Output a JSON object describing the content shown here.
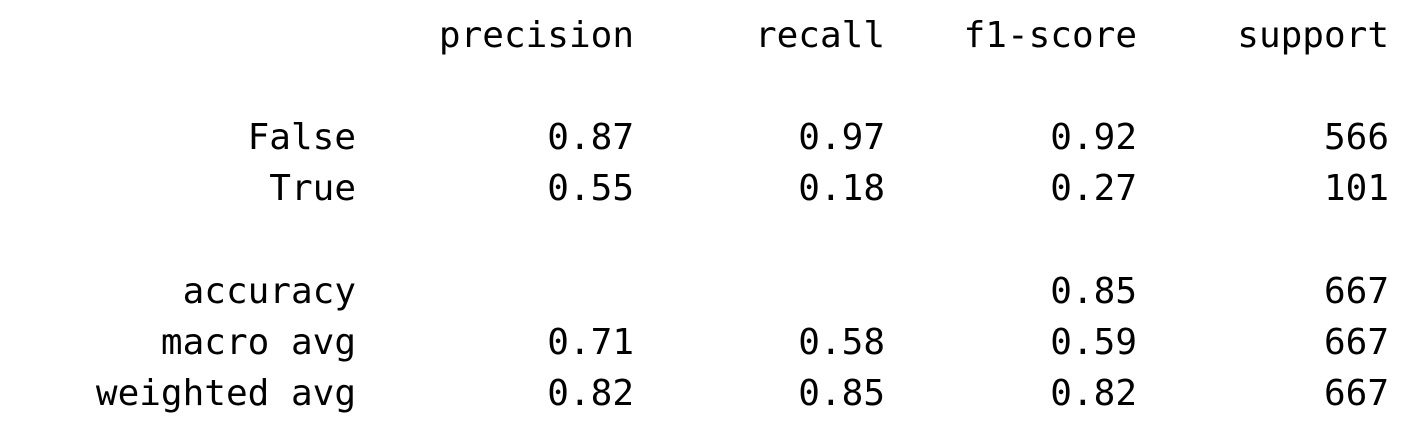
{
  "headers": [
    "precision",
    "recall",
    "f1-score",
    "support"
  ],
  "class_rows": [
    {
      "label": "False",
      "precision": "0.87",
      "recall": "0.97",
      "f1": "0.92",
      "support": "566"
    },
    {
      "label": "True",
      "precision": "0.55",
      "recall": "0.18",
      "f1": "0.27",
      "support": "101"
    }
  ],
  "accuracy_row": {
    "label": "accuracy",
    "precision": "",
    "recall": "",
    "f1": "0.85",
    "support": "667"
  },
  "avg_rows": [
    {
      "label": "macro avg",
      "precision": "0.71",
      "recall": "0.58",
      "f1": "0.59",
      "support": "667"
    },
    {
      "label": "weighted avg",
      "precision": "0.82",
      "recall": "0.85",
      "f1": "0.82",
      "support": "667"
    }
  ]
}
